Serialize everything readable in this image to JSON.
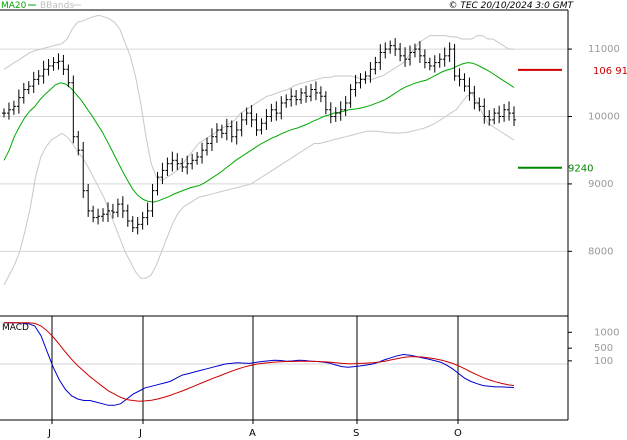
{
  "header": {
    "ma_label": "MA20",
    "bb_label": "BBands",
    "copyright": "© TEC 20/10/2024 3:0 GMT"
  },
  "colors": {
    "ma": "#00aa00",
    "bbands": "#c8c8c8",
    "bars": "#000000",
    "macd": "#0000cc",
    "signal": "#cc0000",
    "resistance": "#cc0000",
    "support": "#008800"
  },
  "chart_data": [
    {
      "type": "ohlc",
      "title": "",
      "ylim": [
        7100,
        11550
      ],
      "y_ticks": [
        {
          "value": 11000,
          "label": "11000"
        },
        {
          "value": 10000,
          "label": "10000"
        },
        {
          "value": 9000,
          "label": "9000"
        },
        {
          "value": 8000,
          "label": "8000"
        }
      ],
      "x_ticks": [
        "J",
        "J",
        "A",
        "S",
        "O"
      ],
      "levels": [
        {
          "name": "resistance",
          "value": 10691,
          "label": "106 91"
        },
        {
          "name": "support",
          "value": 9240,
          "label": "9240"
        }
      ],
      "close": [
        10050,
        10100,
        10150,
        10280,
        10400,
        10450,
        10550,
        10600,
        10700,
        10750,
        10800,
        10820,
        10700,
        10500,
        9700,
        9500,
        8900,
        8600,
        8500,
        8520,
        8550,
        8600,
        8580,
        8700,
        8600,
        8450,
        8350,
        8400,
        8500,
        8600,
        8900,
        9100,
        9200,
        9300,
        9350,
        9300,
        9250,
        9300,
        9350,
        9400,
        9500,
        9600,
        9700,
        9800,
        9750,
        9850,
        9700,
        9800,
        9950,
        10050,
        9950,
        9800,
        9900,
        10000,
        10100,
        10050,
        10200,
        10250,
        10300,
        10250,
        10350,
        10300,
        10400,
        10350,
        10300,
        10100,
        10000,
        10050,
        10100,
        10200,
        10400,
        10500,
        10550,
        10600,
        10700,
        10800,
        10950,
        11000,
        11050,
        11000,
        10900,
        10850,
        10950,
        11000,
        10900,
        10800,
        10750,
        10800,
        10850,
        10900,
        11000,
        10600,
        10550,
        10450,
        10350,
        10200,
        10150,
        10000,
        9950,
        10050,
        10000,
        10100,
        10050,
        9950
      ],
      "ma20": [
        9350,
        9500,
        9700,
        9850,
        9980,
        10080,
        10150,
        10250,
        10330,
        10400,
        10470,
        10500,
        10480,
        10420,
        10330,
        10240,
        10130,
        10020,
        9900,
        9780,
        9640,
        9490,
        9340,
        9190,
        9050,
        8920,
        8830,
        8770,
        8740,
        8730,
        8750,
        8780,
        8810,
        8850,
        8880,
        8910,
        8940,
        8960,
        8980,
        9020,
        9070,
        9120,
        9170,
        9230,
        9290,
        9350,
        9400,
        9450,
        9500,
        9550,
        9600,
        9640,
        9680,
        9710,
        9750,
        9780,
        9810,
        9830,
        9860,
        9890,
        9930,
        9960,
        10000,
        10020,
        10050,
        10060,
        10080,
        10100,
        10110,
        10120,
        10140,
        10160,
        10190,
        10220,
        10250,
        10300,
        10350,
        10400,
        10440,
        10470,
        10500,
        10520,
        10540,
        10580,
        10620,
        10660,
        10690,
        10710,
        10750,
        10780,
        10800,
        10790,
        10760,
        10720,
        10680,
        10630,
        10580,
        10530,
        10480,
        10430
      ],
      "bb_upper": [
        10700,
        10750,
        10800,
        10850,
        10900,
        10950,
        10980,
        11000,
        11020,
        11040,
        11060,
        11080,
        11150,
        11300,
        11400,
        11420,
        11450,
        11480,
        11500,
        11480,
        11450,
        11400,
        11300,
        11100,
        10900,
        10600,
        10200,
        9700,
        9300,
        9100,
        9050,
        9100,
        9150,
        9200,
        9300,
        9400,
        9500,
        9600,
        9650,
        9700,
        9750,
        9800,
        9850,
        9900,
        9950,
        10050,
        10100,
        10150,
        10200,
        10250,
        10300,
        10320,
        10350,
        10380,
        10400,
        10450,
        10480,
        10500,
        10520,
        10540,
        10560,
        10580,
        10580,
        10600,
        10600,
        10600,
        10600,
        10580,
        10560,
        10560,
        10550,
        10580,
        10600,
        10650,
        10700,
        10750,
        10800,
        10900,
        11000,
        11100,
        11150,
        11200,
        11200,
        11200,
        11200,
        11180,
        11180,
        11150,
        11150,
        11150,
        11200,
        11200,
        11150,
        11150,
        11100,
        11050,
        11000,
        11000
      ],
      "bb_lower": [
        7500,
        7650,
        7800,
        8000,
        8300,
        8650,
        9100,
        9400,
        9550,
        9650,
        9700,
        9750,
        9700,
        9600,
        9480,
        9380,
        9250,
        9100,
        8950,
        8800,
        8600,
        8400,
        8200,
        8000,
        7850,
        7700,
        7600,
        7600,
        7650,
        7800,
        8000,
        8200,
        8400,
        8550,
        8650,
        8700,
        8750,
        8800,
        8820,
        8840,
        8860,
        8880,
        8900,
        8920,
        8940,
        8960,
        8980,
        9000,
        9050,
        9100,
        9150,
        9200,
        9250,
        9300,
        9350,
        9400,
        9450,
        9500,
        9550,
        9600,
        9600,
        9620,
        9640,
        9660,
        9680,
        9700,
        9720,
        9740,
        9760,
        9780,
        9780,
        9780,
        9770,
        9760,
        9760,
        9750,
        9760,
        9770,
        9790,
        9810,
        9830,
        9860,
        9900,
        9950,
        10000,
        10050,
        10100,
        10200,
        10300,
        10350,
        10200,
        10050,
        9900,
        9850,
        9800,
        9750,
        9700,
        9650
      ]
    },
    {
      "type": "line",
      "title": "MACD",
      "ylim": [
        -1700,
        1450
      ],
      "y_ticks": [
        {
          "value": 1000,
          "label": "1000"
        },
        {
          "value": 500,
          "label": "500"
        },
        {
          "value": 100,
          "label": "100"
        }
      ],
      "series": [
        {
          "key": "macd",
          "values": [
            1300,
            1300,
            1300,
            1290,
            1270,
            1200,
            900,
            400,
            -100,
            -500,
            -800,
            -1000,
            -1100,
            -1150,
            -1150,
            -1200,
            -1250,
            -1300,
            -1300,
            -1250,
            -1100,
            -950,
            -850,
            -750,
            -700,
            -650,
            -600,
            -550,
            -450,
            -350,
            -300,
            -250,
            -200,
            -150,
            -100,
            -50,
            0,
            20,
            40,
            30,
            20,
            50,
            80,
            100,
            120,
            110,
            90,
            100,
            120,
            110,
            90,
            80,
            60,
            30,
            -30,
            -80,
            -100,
            -80,
            -60,
            -30,
            0,
            60,
            140,
            200,
            260,
            300,
            280,
            240,
            200,
            160,
            110,
            60,
            -30,
            -150,
            -300,
            -450,
            -550,
            -620,
            -680,
            -700,
            -720,
            -720,
            -730,
            -740
          ]
        },
        {
          "key": "signal",
          "values": [
            1300,
            1300,
            1300,
            1300,
            1300,
            1280,
            1200,
            1050,
            850,
            620,
            380,
            150,
            -50,
            -230,
            -400,
            -550,
            -700,
            -850,
            -950,
            -1050,
            -1120,
            -1150,
            -1170,
            -1160,
            -1140,
            -1100,
            -1050,
            -990,
            -920,
            -850,
            -770,
            -690,
            -610,
            -530,
            -450,
            -380,
            -300,
            -230,
            -160,
            -100,
            -50,
            -10,
            20,
            40,
            60,
            70,
            80,
            80,
            90,
            90,
            90,
            80,
            70,
            60,
            40,
            20,
            10,
            10,
            20,
            30,
            40,
            60,
            90,
            130,
            170,
            210,
            230,
            230,
            220,
            200,
            170,
            130,
            80,
            20,
            -60,
            -150,
            -250,
            -340,
            -430,
            -500,
            -560,
            -610,
            -650,
            -680
          ]
        }
      ]
    }
  ]
}
